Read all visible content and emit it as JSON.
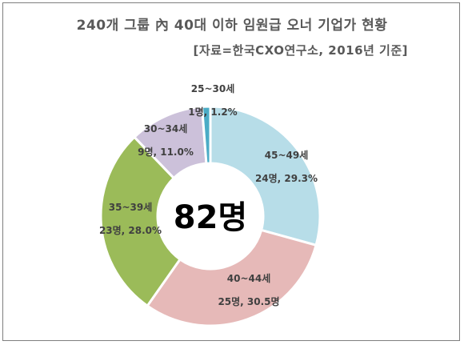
{
  "chart_data": {
    "type": "pie",
    "variant": "donut",
    "title": "240개 그룹 內 40대 이하 임원급 오너 기업가 현황",
    "subtitle": "[자료=한국CXO연구소, 2016년 기준]",
    "center_label": "82명",
    "categories": [
      "45~49세",
      "40~44세",
      "35~39세",
      "30~34세",
      "25~30세"
    ],
    "values": [
      24,
      25,
      23,
      9,
      1
    ],
    "percents": [
      29.3,
      30.5,
      28.0,
      11.0,
      1.2
    ],
    "value_labels": [
      "24명, 29.3%",
      "25명, 30.5명",
      "23명, 28.0%",
      "9명, 11.0%",
      "1명, 1.2%"
    ],
    "colors": [
      "#b7dde8",
      "#e6b9b8",
      "#9bbb59",
      "#ccc1da",
      "#4bacc6"
    ]
  }
}
